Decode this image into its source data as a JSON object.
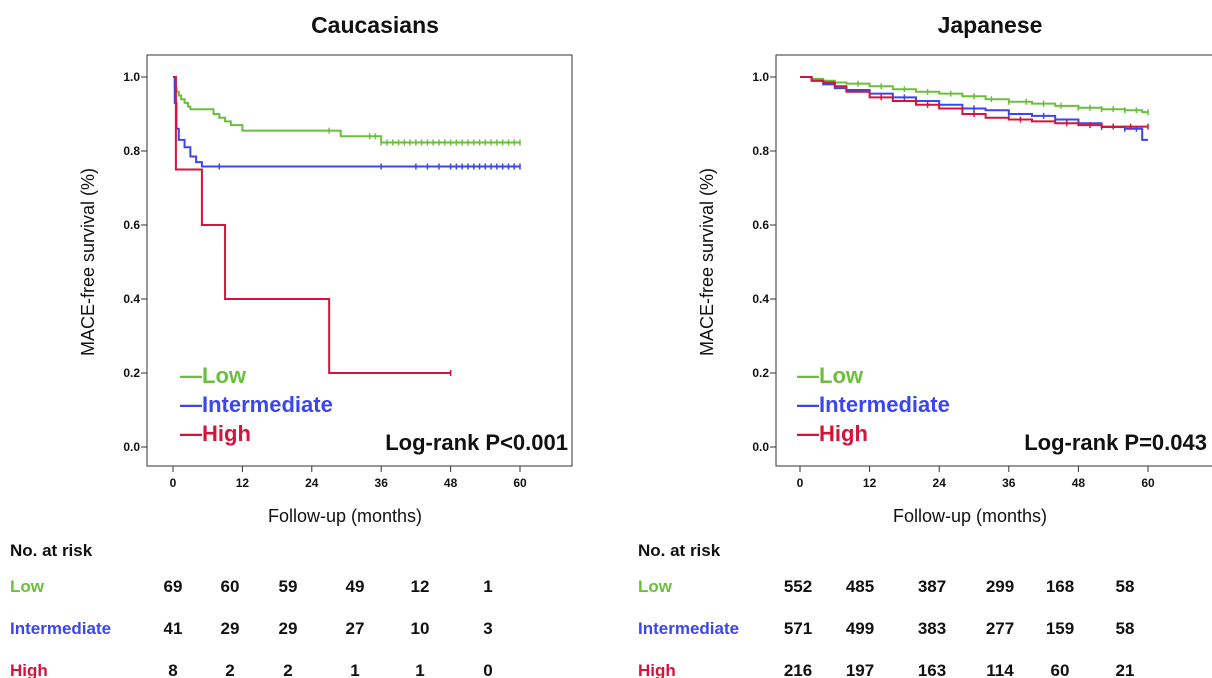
{
  "colors": {
    "low": "#6cbf3c",
    "intermediate": "#3b46ee",
    "high": "#d61439"
  },
  "chart_data": [
    {
      "type": "line",
      "title": "Caucasians",
      "xlabel": "Follow-up (months)",
      "ylabel": "MACE-free survival (%)",
      "xlim": [
        0,
        60
      ],
      "ylim": [
        0,
        1.0
      ],
      "xticks": [
        "0",
        "12",
        "24",
        "36",
        "48",
        "60"
      ],
      "yticks": [
        "0.0",
        "0.2",
        "0.4",
        "0.6",
        "0.8",
        "1.0"
      ],
      "annotation": "Log-rank P<0.001",
      "legend_placement": "bottom-left",
      "series": [
        {
          "name": "Low",
          "color": "#6cbf3c",
          "x": [
            0,
            0.3,
            0.6,
            1,
            1.4,
            2,
            2.6,
            3,
            6,
            7,
            8,
            9,
            10,
            12,
            27,
            29,
            36,
            60
          ],
          "y": [
            1.0,
            0.97,
            0.96,
            0.95,
            0.94,
            0.93,
            0.92,
            0.913,
            0.913,
            0.9,
            0.89,
            0.88,
            0.87,
            0.855,
            0.855,
            0.84,
            0.823,
            0.823
          ],
          "censored": [
            27,
            34,
            35,
            36,
            37,
            38,
            39,
            40,
            41,
            42,
            43,
            44,
            45,
            46,
            47,
            48,
            49,
            50,
            51,
            52,
            53,
            54,
            55,
            56,
            57,
            58,
            59,
            60
          ]
        },
        {
          "name": "Intermediate",
          "color": "#3b46ee",
          "x": [
            0,
            0.3,
            0.6,
            1,
            2,
            3,
            4,
            5,
            60
          ],
          "y": [
            1.0,
            0.93,
            0.86,
            0.83,
            0.81,
            0.785,
            0.77,
            0.758,
            0.758
          ],
          "censored": [
            8,
            36,
            42,
            44,
            46,
            48,
            49,
            50,
            51,
            52,
            53,
            54,
            55,
            56,
            57,
            58,
            59,
            60
          ]
        },
        {
          "name": "High",
          "color": "#d61439",
          "x": [
            0,
            0.5,
            5,
            9,
            27,
            48
          ],
          "y": [
            1.0,
            0.75,
            0.6,
            0.4,
            0.2,
            0.2
          ],
          "censored": [
            48
          ]
        }
      ],
      "risk_table": {
        "header": "No. at risk",
        "rows": [
          {
            "label": "Low",
            "values": [
              "69",
              "60",
              "59",
              "49",
              "12",
              "1"
            ]
          },
          {
            "label": "Intermediate",
            "values": [
              "41",
              "29",
              "29",
              "27",
              "10",
              "3"
            ]
          },
          {
            "label": "High",
            "values": [
              "8",
              "2",
              "2",
              "1",
              "1",
              "0"
            ]
          }
        ]
      }
    },
    {
      "type": "line",
      "title": "Japanese",
      "xlabel": "Follow-up (months)",
      "ylabel": "MACE-free survival (%)",
      "xlim": [
        0,
        60
      ],
      "ylim": [
        0,
        1.0
      ],
      "xticks": [
        "0",
        "12",
        "24",
        "36",
        "48",
        "60"
      ],
      "yticks": [
        "0.0",
        "0.2",
        "0.4",
        "0.6",
        "0.8",
        "1.0"
      ],
      "annotation": "Log-rank P=0.043",
      "legend_placement": "bottom-left",
      "series": [
        {
          "name": "Low",
          "color": "#6cbf3c",
          "x": [
            0,
            2,
            4,
            6,
            8,
            12,
            16,
            20,
            24,
            28,
            32,
            36,
            40,
            44,
            48,
            52,
            56,
            59,
            60
          ],
          "y": [
            1.0,
            0.995,
            0.99,
            0.985,
            0.982,
            0.975,
            0.967,
            0.96,
            0.955,
            0.948,
            0.94,
            0.933,
            0.928,
            0.922,
            0.917,
            0.913,
            0.91,
            0.905,
            0.905
          ],
          "censored": [
            10,
            14,
            18,
            22,
            26,
            30,
            33,
            36,
            39,
            42,
            45,
            48,
            50,
            52,
            54,
            56,
            58,
            60
          ]
        },
        {
          "name": "Intermediate",
          "color": "#3b46ee",
          "x": [
            0,
            2,
            4,
            6,
            8,
            12,
            16,
            20,
            24,
            28,
            32,
            36,
            40,
            44,
            48,
            52,
            56,
            59,
            60
          ],
          "y": [
            1.0,
            0.99,
            0.98,
            0.97,
            0.965,
            0.955,
            0.945,
            0.935,
            0.925,
            0.915,
            0.91,
            0.9,
            0.895,
            0.885,
            0.875,
            0.865,
            0.86,
            0.83,
            0.83
          ],
          "censored": [
            12,
            18,
            24,
            30,
            36,
            42,
            48,
            52,
            56,
            58
          ]
        },
        {
          "name": "High",
          "color": "#d61439",
          "x": [
            0,
            2,
            4,
            6,
            8,
            12,
            16,
            20,
            24,
            28,
            32,
            36,
            40,
            44,
            48,
            52,
            56,
            60
          ],
          "y": [
            1.0,
            0.99,
            0.985,
            0.975,
            0.96,
            0.945,
            0.935,
            0.925,
            0.915,
            0.9,
            0.89,
            0.885,
            0.88,
            0.875,
            0.87,
            0.866,
            0.866,
            0.866
          ],
          "censored": [
            14,
            22,
            30,
            38,
            46,
            50,
            54,
            57,
            60
          ]
        }
      ],
      "risk_table": {
        "header": "No. at risk",
        "rows": [
          {
            "label": "Low",
            "values": [
              "552",
              "485",
              "387",
              "299",
              "168",
              "58"
            ]
          },
          {
            "label": "Intermediate",
            "values": [
              "571",
              "499",
              "383",
              "277",
              "159",
              "58"
            ]
          },
          {
            "label": "High",
            "values": [
              "216",
              "197",
              "163",
              "114",
              "60",
              "21"
            ]
          }
        ]
      }
    }
  ]
}
